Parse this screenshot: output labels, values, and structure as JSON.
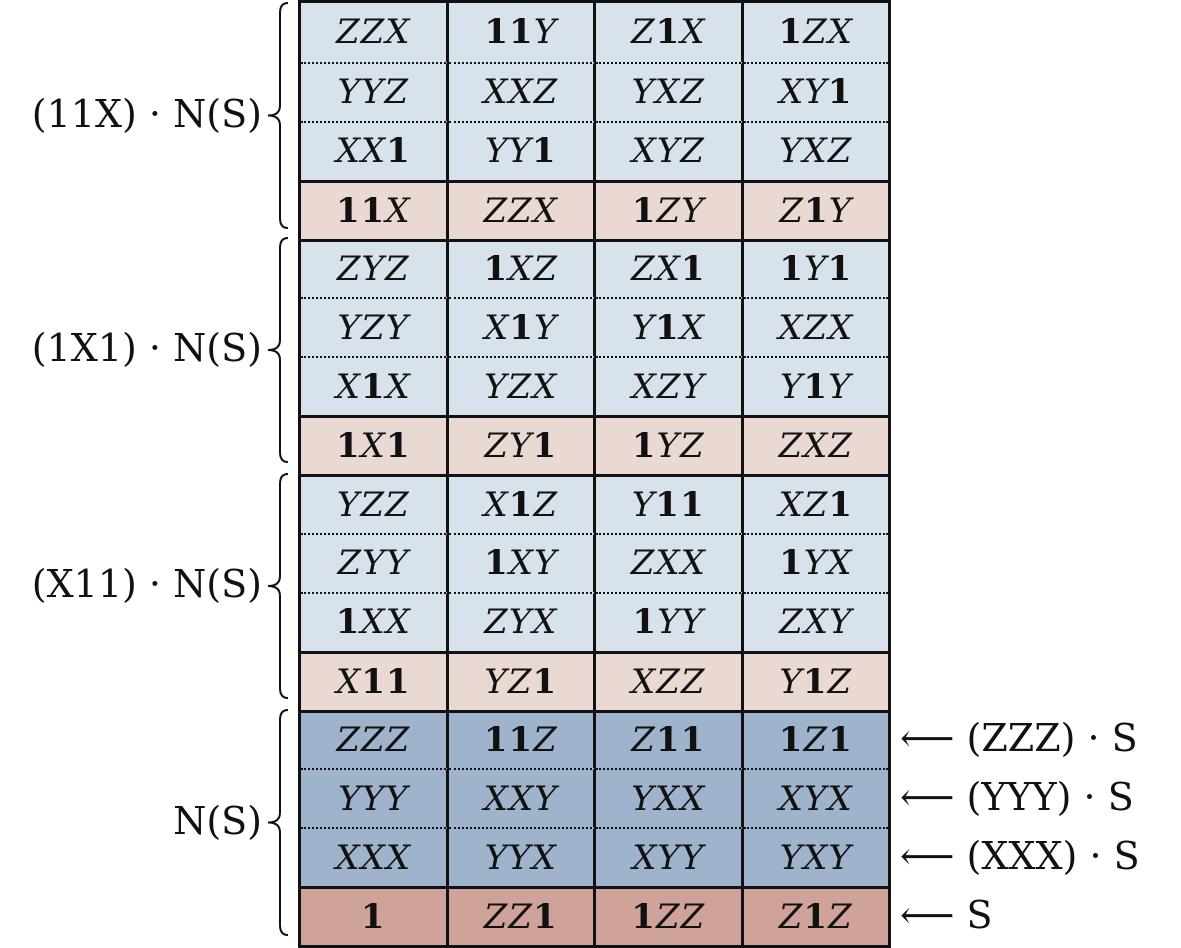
{
  "groups": [
    {
      "label": "(11X) · N(S)",
      "rows": [
        [
          "ZZX",
          "11Y",
          "Z1X",
          "1ZX"
        ],
        [
          "YYZ",
          "XXZ",
          "YXZ",
          "XY1"
        ],
        [
          "XX1",
          "YY1",
          "XYZ",
          "YXZ"
        ],
        [
          "11X",
          "ZZX",
          "1ZY",
          "Z1Y"
        ]
      ]
    },
    {
      "label": "(1X1) · N(S)",
      "rows": [
        [
          "ZYZ",
          "1XZ",
          "ZX1",
          "1Y1"
        ],
        [
          "YZY",
          "X1Y",
          "Y1X",
          "XZX"
        ],
        [
          "X1X",
          "YZX",
          "XZY",
          "Y1Y"
        ],
        [
          "1X1",
          "ZY1",
          "1YZ",
          "ZXZ"
        ]
      ]
    },
    {
      "label": "(X11) · N(S)",
      "rows": [
        [
          "YZZ",
          "X1Z",
          "Y11",
          "XZ1"
        ],
        [
          "ZYY",
          "1XY",
          "ZXX",
          "1YX"
        ],
        [
          "1XX",
          "ZYX",
          "1YY",
          "ZXY"
        ],
        [
          "X11",
          "YZ1",
          "XZZ",
          "Y1Z"
        ]
      ]
    },
    {
      "label": "N(S)",
      "rows": [
        [
          "ZZZ",
          "11Z",
          "Z11",
          "1Z1"
        ],
        [
          "YYY",
          "XXY",
          "YXX",
          "XYX"
        ],
        [
          "XXX",
          "YYX",
          "XYY",
          "YXY"
        ],
        [
          "1",
          "ZZ1",
          "1ZZ",
          "Z1Z"
        ]
      ]
    }
  ],
  "right_labels": [
    "⟵ (ZZZ) · S",
    "⟵ (YYY) · S",
    "⟵ (XXX) · S",
    "⟵ S"
  ]
}
